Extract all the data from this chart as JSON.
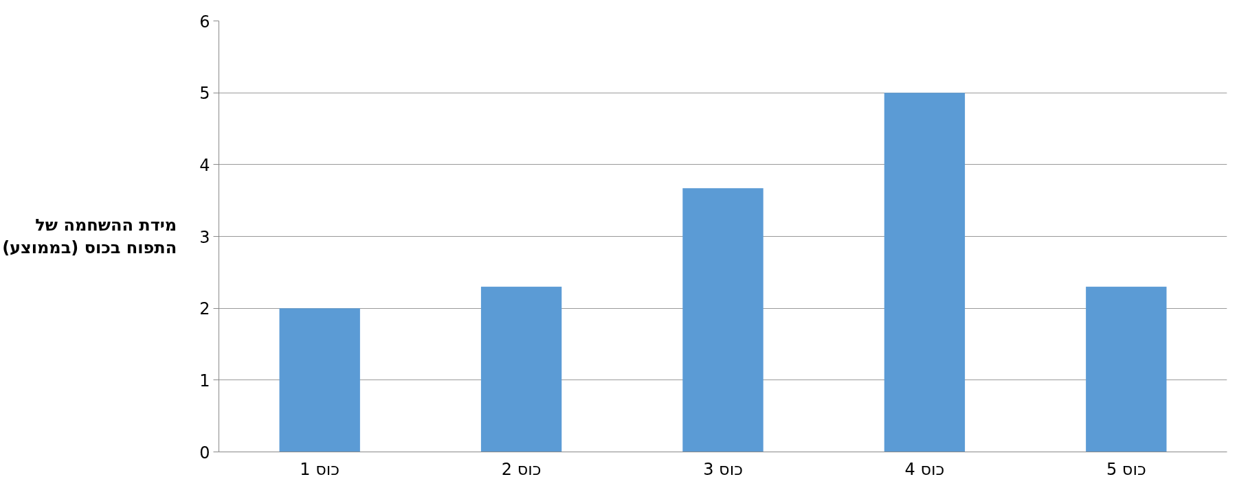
{
  "chart_data": {
    "type": "bar",
    "ylabel": "מידת ההשחמה של\nהתפוח בכוס (בממוצע)",
    "categories": [
      "כוס 1",
      "כוס 2",
      "כוס 3",
      "כוס 4",
      "כוס 5"
    ],
    "values": [
      2,
      2.3,
      3.67,
      5,
      2.3
    ],
    "color": "#5b9bd5",
    "ylim": [
      0,
      6
    ],
    "yticks": [
      0,
      1,
      2,
      3,
      4,
      5,
      6
    ],
    "grid": "y"
  }
}
